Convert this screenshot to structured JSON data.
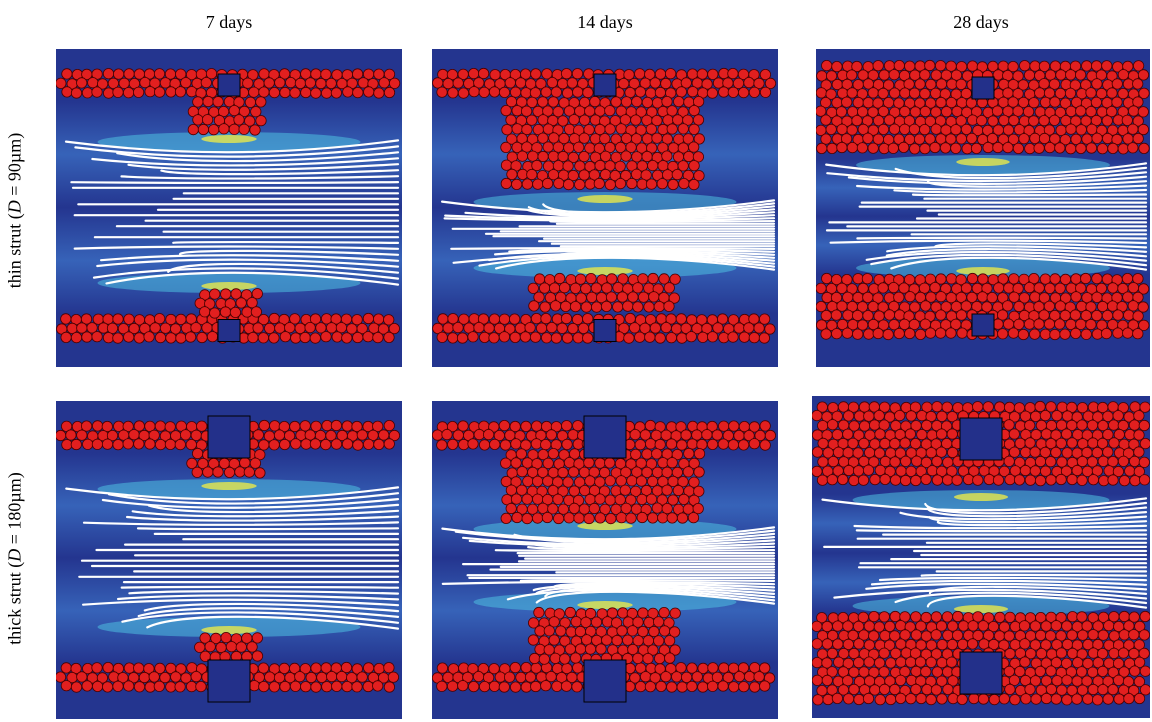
{
  "columns": [
    {
      "label": "7 days"
    },
    {
      "label": "14 days"
    },
    {
      "label": "28 days"
    }
  ],
  "rows": [
    {
      "label_prefix": "thin strut (",
      "label_var": "D",
      "label_suffix": " = 90µm)"
    },
    {
      "label_prefix": "thick strut (",
      "label_var": "D",
      "label_suffix": " = 180µm)"
    }
  ],
  "colors": {
    "background_flow": "#24358f",
    "flow_mid": "#3a6bc0",
    "flow_fast": "#4fc0e0",
    "flow_peak": "#e8e84a",
    "cells": "#e21f1f",
    "cell_outline": "#4a0000",
    "streamline": "#ffffff",
    "strut": "#23308a"
  }
}
